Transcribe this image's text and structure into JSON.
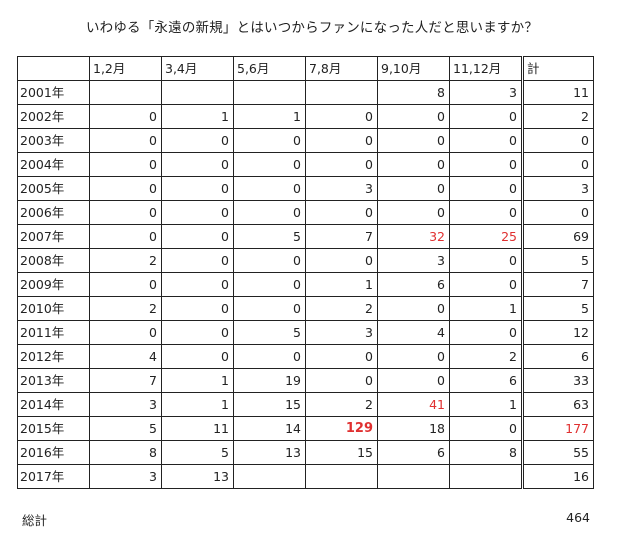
{
  "chart_data": {
    "type": "table",
    "title": "いわゆる「永遠の新規」とはいつからファンになった人だと思いますか？",
    "columns": [
      "1,2月",
      "3,4月",
      "5,6月",
      "7,8月",
      "9,10月",
      "11,12月"
    ],
    "total_label": "計",
    "rows": [
      {
        "year": "2001年",
        "values": [
          "",
          "",
          "",
          "",
          "8",
          "3"
        ],
        "total": "11"
      },
      {
        "year": "2002年",
        "values": [
          "0",
          "1",
          "1",
          "0",
          "0",
          "0"
        ],
        "total": "2"
      },
      {
        "year": "2003年",
        "values": [
          "0",
          "0",
          "0",
          "0",
          "0",
          "0"
        ],
        "total": "0"
      },
      {
        "year": "2004年",
        "values": [
          "0",
          "0",
          "0",
          "0",
          "0",
          "0"
        ],
        "total": "0"
      },
      {
        "year": "2005年",
        "values": [
          "0",
          "0",
          "0",
          "3",
          "0",
          "0"
        ],
        "total": "3"
      },
      {
        "year": "2006年",
        "values": [
          "0",
          "0",
          "0",
          "0",
          "0",
          "0"
        ],
        "total": "0"
      },
      {
        "year": "2007年",
        "values": [
          "0",
          "0",
          "5",
          "7",
          "32",
          "25"
        ],
        "total": "69"
      },
      {
        "year": "2008年",
        "values": [
          "2",
          "0",
          "0",
          "0",
          "3",
          "0"
        ],
        "total": "5"
      },
      {
        "year": "2009年",
        "values": [
          "0",
          "0",
          "0",
          "1",
          "6",
          "0"
        ],
        "total": "7"
      },
      {
        "year": "2010年",
        "values": [
          "2",
          "0",
          "0",
          "2",
          "0",
          "1"
        ],
        "total": "5"
      },
      {
        "year": "2011年",
        "values": [
          "0",
          "0",
          "5",
          "3",
          "4",
          "0"
        ],
        "total": "12"
      },
      {
        "year": "2012年",
        "values": [
          "4",
          "0",
          "0",
          "0",
          "0",
          "2"
        ],
        "total": "6"
      },
      {
        "year": "2013年",
        "values": [
          "7",
          "1",
          "19",
          "0",
          "0",
          "6"
        ],
        "total": "33"
      },
      {
        "year": "2014年",
        "values": [
          "3",
          "1",
          "15",
          "2",
          "41",
          "1"
        ],
        "total": "63"
      },
      {
        "year": "2015年",
        "values": [
          "5",
          "11",
          "14",
          "129",
          "18",
          "0"
        ],
        "total": "177"
      },
      {
        "year": "2016年",
        "values": [
          "8",
          "5",
          "13",
          "15",
          "6",
          "8"
        ],
        "total": "55"
      },
      {
        "year": "2017年",
        "values": [
          "3",
          "13",
          "",
          "",
          "",
          ""
        ],
        "total": "16"
      }
    ],
    "grand_total_label": "総計",
    "grand_total": "464",
    "highlights": [
      {
        "year": "2007年",
        "column": "9,10月",
        "style": "red"
      },
      {
        "year": "2007年",
        "column": "11,12月",
        "style": "red"
      },
      {
        "year": "2014年",
        "column": "9,10月",
        "style": "red"
      },
      {
        "year": "2015年",
        "column": "7,8月",
        "style": "red-bold"
      },
      {
        "year": "2015年",
        "column": "計",
        "style": "red"
      }
    ],
    "highlight_color": "#e03030"
  }
}
